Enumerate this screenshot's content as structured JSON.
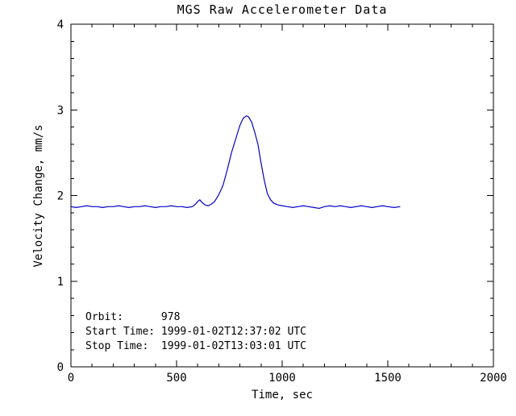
{
  "chart_data": {
    "type": "line",
    "title": "MGS Raw Accelerometer Data",
    "xlabel": "Time, sec",
    "ylabel": "Velocity Change, mm/s",
    "xlim": [
      0,
      2000
    ],
    "ylim": [
      0,
      4
    ],
    "xticks": [
      0,
      500,
      1000,
      1500,
      2000
    ],
    "yticks": [
      0,
      1,
      2,
      3,
      4
    ],
    "x_minor_divisions": 5,
    "y_minor_divisions": 5,
    "grid": false,
    "legend_position": "none",
    "line_color": "#0000c8",
    "axis_color": "#000000",
    "background_color": "#ffffff",
    "series": [
      {
        "name": "velocity_change",
        "points": [
          [
            0,
            1.87
          ],
          [
            25,
            1.86
          ],
          [
            50,
            1.87
          ],
          [
            75,
            1.88
          ],
          [
            100,
            1.87
          ],
          [
            125,
            1.87
          ],
          [
            150,
            1.86
          ],
          [
            175,
            1.87
          ],
          [
            200,
            1.87
          ],
          [
            225,
            1.88
          ],
          [
            250,
            1.87
          ],
          [
            275,
            1.86
          ],
          [
            300,
            1.87
          ],
          [
            325,
            1.87
          ],
          [
            350,
            1.88
          ],
          [
            375,
            1.87
          ],
          [
            400,
            1.86
          ],
          [
            425,
            1.87
          ],
          [
            450,
            1.87
          ],
          [
            475,
            1.88
          ],
          [
            500,
            1.87
          ],
          [
            525,
            1.87
          ],
          [
            550,
            1.86
          ],
          [
            575,
            1.87
          ],
          [
            590,
            1.9
          ],
          [
            600,
            1.93
          ],
          [
            610,
            1.95
          ],
          [
            620,
            1.92
          ],
          [
            635,
            1.89
          ],
          [
            650,
            1.88
          ],
          [
            665,
            1.9
          ],
          [
            680,
            1.93
          ],
          [
            700,
            2.01
          ],
          [
            720,
            2.12
          ],
          [
            740,
            2.3
          ],
          [
            760,
            2.5
          ],
          [
            780,
            2.66
          ],
          [
            800,
            2.82
          ],
          [
            815,
            2.9
          ],
          [
            830,
            2.93
          ],
          [
            840,
            2.92
          ],
          [
            855,
            2.86
          ],
          [
            870,
            2.74
          ],
          [
            885,
            2.6
          ],
          [
            900,
            2.38
          ],
          [
            915,
            2.18
          ],
          [
            930,
            2.02
          ],
          [
            945,
            1.95
          ],
          [
            960,
            1.91
          ],
          [
            980,
            1.89
          ],
          [
            1000,
            1.88
          ],
          [
            1025,
            1.87
          ],
          [
            1050,
            1.86
          ],
          [
            1075,
            1.87
          ],
          [
            1100,
            1.88
          ],
          [
            1125,
            1.87
          ],
          [
            1150,
            1.86
          ],
          [
            1175,
            1.85
          ],
          [
            1200,
            1.87
          ],
          [
            1225,
            1.88
          ],
          [
            1250,
            1.87
          ],
          [
            1275,
            1.88
          ],
          [
            1300,
            1.87
          ],
          [
            1325,
            1.86
          ],
          [
            1350,
            1.87
          ],
          [
            1375,
            1.88
          ],
          [
            1400,
            1.87
          ],
          [
            1425,
            1.86
          ],
          [
            1450,
            1.87
          ],
          [
            1475,
            1.88
          ],
          [
            1500,
            1.87
          ],
          [
            1530,
            1.86
          ],
          [
            1559,
            1.87
          ]
        ]
      }
    ],
    "annotations": [
      {
        "text": "Orbit:      978"
      },
      {
        "text": "Start Time: 1999-01-02T12:37:02 UTC"
      },
      {
        "text": "Stop Time:  1999-01-02T13:03:01 UTC"
      }
    ]
  }
}
